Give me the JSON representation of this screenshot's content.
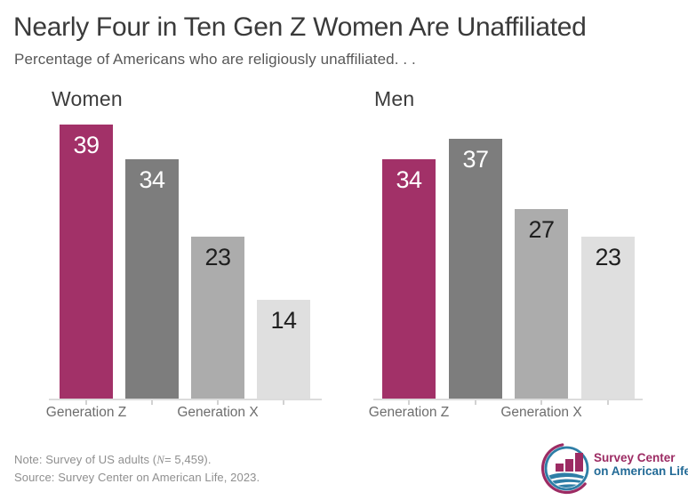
{
  "header": {
    "title": "Nearly Four in Ten Gen Z Women Are Unaffiliated",
    "subtitle": "Percentage of Americans who are religiously unaffiliated. . ."
  },
  "chart_data": [
    {
      "type": "bar",
      "title": "Women",
      "values": [
        39,
        34,
        23,
        14
      ],
      "x_tick_labels": [
        {
          "label": "Generation Z",
          "bar_index": 0
        },
        {
          "label": "Generation X",
          "bar_index": 2
        }
      ],
      "ylim": [
        0,
        39
      ],
      "grid": false,
      "legend": false
    },
    {
      "type": "bar",
      "title": "Men",
      "values": [
        34,
        37,
        27,
        23
      ],
      "x_tick_labels": [
        {
          "label": "Generation Z",
          "bar_index": 0
        },
        {
          "label": "Generation X",
          "bar_index": 2
        }
      ],
      "ylim": [
        0,
        39
      ],
      "grid": false,
      "legend": false
    }
  ],
  "style": {
    "bar_colors": [
      "#a23168",
      "#7d7d7d",
      "#acacac",
      "#dfdfdf"
    ],
    "value_label_colors": [
      "#ffffff",
      "#ffffff",
      "#1f1f1f",
      "#1f1f1f"
    ],
    "accent_magenta": "#a23168",
    "logo_magenta": "#9c2b63",
    "logo_blue": "#2e7ea6",
    "axis_color": "#dcdcdc"
  },
  "footer": {
    "note_prefix": "Note: Survey of US adults (",
    "note_n": "N",
    "note_rest": "= 5,459).",
    "source": "Source: Survey Center on American Life, 2023.",
    "logo_line1": "Survey Center",
    "logo_line2": "on American Life"
  }
}
